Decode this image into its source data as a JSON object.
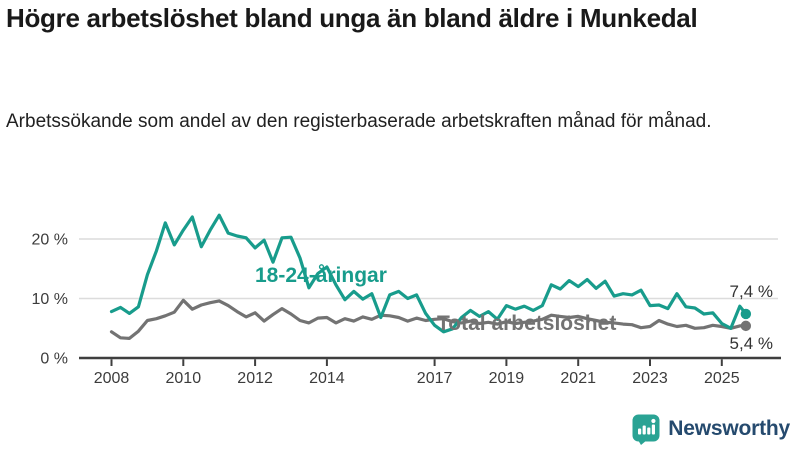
{
  "header": {
    "title": "Högre arbetslöshet bland unga än bland äldre i Munkedal",
    "subtitle": "Arbetssökande som andel av den registerbaserade arbetskraften månad för månad."
  },
  "chart_data": {
    "type": "line",
    "x": [
      2008,
      2008.25,
      2008.5,
      2008.75,
      2009,
      2009.25,
      2009.5,
      2009.75,
      2010,
      2010.25,
      2010.5,
      2010.75,
      2011,
      2011.25,
      2011.5,
      2011.75,
      2012,
      2012.25,
      2012.5,
      2012.75,
      2013,
      2013.25,
      2013.5,
      2013.75,
      2014,
      2014.25,
      2014.5,
      2014.75,
      2015,
      2015.25,
      2015.5,
      2015.75,
      2016,
      2016.25,
      2016.5,
      2016.75,
      2017,
      2017.25,
      2017.5,
      2017.75,
      2018,
      2018.25,
      2018.5,
      2018.75,
      2019,
      2019.25,
      2019.5,
      2019.75,
      2020,
      2020.25,
      2020.5,
      2020.75,
      2021,
      2021.25,
      2021.5,
      2021.75,
      2022,
      2022.25,
      2022.5,
      2022.75,
      2023,
      2023.25,
      2023.5,
      2023.75,
      2024,
      2024.25,
      2024.5,
      2024.75,
      2025,
      2025.25,
      2025.5,
      2025.67
    ],
    "series": [
      {
        "name": "Total arbetslöshet",
        "color": "#737373",
        "end_label": "5,4 %",
        "end_value": 5.4,
        "values": [
          4.4,
          3.4,
          3.3,
          4.5,
          6.3,
          6.6,
          7.1,
          7.7,
          9.7,
          8.2,
          8.9,
          9.3,
          9.6,
          8.8,
          7.8,
          6.9,
          7.6,
          6.2,
          7.3,
          8.3,
          7.4,
          6.3,
          5.9,
          6.7,
          6.8,
          5.9,
          6.6,
          6.2,
          6.9,
          6.5,
          7.2,
          7.1,
          6.8,
          6.2,
          6.7,
          6.3,
          6.5,
          6.6,
          6.1,
          5.9,
          6.2,
          5.8,
          6.0,
          5.7,
          6.1,
          5.8,
          6.0,
          6.2,
          6.5,
          7.2,
          7.0,
          6.8,
          7.0,
          6.6,
          6.3,
          6.0,
          5.9,
          5.7,
          5.6,
          5.1,
          5.3,
          6.3,
          5.7,
          5.3,
          5.5,
          5.0,
          5.1,
          5.5,
          5.3,
          5.0,
          5.4,
          5.4
        ]
      },
      {
        "name": "18-24-åringar",
        "color": "#189c8c",
        "end_label": "7,4 %",
        "end_value": 7.4,
        "values": [
          7.8,
          8.5,
          7.5,
          8.6,
          14.0,
          18.0,
          22.7,
          19.0,
          21.5,
          23.7,
          18.7,
          21.5,
          24.0,
          21.0,
          20.5,
          20.2,
          18.5,
          19.8,
          16.1,
          20.2,
          20.3,
          16.8,
          11.8,
          14.2,
          15.3,
          12.3,
          9.8,
          11.2,
          9.9,
          10.8,
          6.8,
          10.6,
          11.2,
          10.0,
          10.6,
          7.5,
          5.5,
          4.4,
          4.9,
          6.8,
          8.0,
          7.0,
          7.8,
          6.5,
          8.8,
          8.2,
          8.7,
          8.0,
          8.8,
          12.3,
          11.6,
          13.0,
          12.0,
          13.2,
          11.7,
          12.9,
          10.4,
          10.8,
          10.6,
          11.4,
          8.8,
          8.9,
          8.3,
          10.8,
          8.6,
          8.4,
          7.4,
          7.6,
          5.8,
          5.0,
          8.7,
          7.4
        ]
      }
    ],
    "xticks": [
      2008,
      2010,
      2012,
      2014,
      2017,
      2019,
      2021,
      2023,
      2025
    ],
    "yticks": [
      {
        "value": 0,
        "label": "0 %"
      },
      {
        "value": 10,
        "label": "10 %"
      },
      {
        "value": 20,
        "label": "20 %"
      }
    ],
    "xlim": [
      2008,
      2025.9
    ],
    "ylim": [
      0,
      25
    ],
    "grid": "horizontal",
    "legend_position": "inline-labels"
  },
  "footer": {
    "brand": "Newsworthy",
    "logo_icon": "bar-chart-speech-bubble-icon"
  },
  "colors": {
    "youth_line": "#189c8c",
    "total_line": "#737373",
    "grid": "#dcdcdc",
    "axis": "#3f3f3f",
    "tick_text": "#3c3c3c",
    "end_label_text": "#333333",
    "brand_navy": "#254a6e",
    "logo_teal": "#2aa394"
  }
}
